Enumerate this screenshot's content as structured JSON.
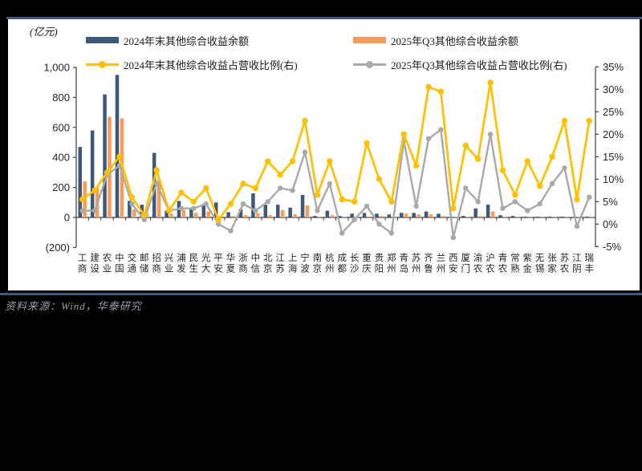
{
  "page": {
    "background": "#000000",
    "divider_color": "#3D5A7E"
  },
  "chart": {
    "unit_label": "(亿元)",
    "legend": [
      {
        "label": "2024年末其他综合收益余额",
        "type": "bar",
        "color": "#3F5878"
      },
      {
        "label": "2025年Q3其他综合收益余额",
        "type": "bar",
        "color": "#F79C5B"
      },
      {
        "label": "2024年末其他综合收益占营收比例(右)",
        "type": "line",
        "color": "#FFC000"
      },
      {
        "label": "2025年Q3其他综合收益占营收比例(右)",
        "type": "line",
        "color": "#A9A9A9"
      }
    ]
  },
  "chart_data": {
    "type": "bar+line combo",
    "title": "",
    "legend_position": "top",
    "grid": false,
    "categories": [
      "工商",
      "建设",
      "农业",
      "中国",
      "交通",
      "邮储",
      "招商",
      "兴业",
      "浦发",
      "民生",
      "光大",
      "平安",
      "华夏",
      "浙商",
      "中信",
      "北京",
      "江苏",
      "上海",
      "宁波",
      "南京",
      "杭州",
      "成都",
      "长沙",
      "重庆",
      "贵阳",
      "郑州",
      "青岛",
      "苏州",
      "齐鲁",
      "兰州",
      "西安",
      "厦门",
      "渝农",
      "沪农",
      "青农",
      "常熟",
      "紫金",
      "无锡",
      "张家",
      "苏农",
      "江阴",
      "瑞丰"
    ],
    "left_axis": {
      "label": "(亿元)",
      "min": -200,
      "max": 1000,
      "tick_values": [
        1000,
        800,
        600,
        400,
        200,
        0,
        -200
      ],
      "tick_labels": [
        "1,000",
        "800",
        "600",
        "400",
        "200",
        "0",
        "(200)"
      ]
    },
    "right_axis": {
      "min": -5,
      "max": 35,
      "tick_values": [
        35,
        30,
        25,
        20,
        15,
        10,
        5,
        0,
        -5
      ],
      "tick_labels": [
        "35%",
        "30%",
        "25%",
        "20%",
        "15%",
        "10%",
        "5%",
        "0%",
        "-5%"
      ]
    },
    "series": [
      {
        "name": "2024年末其他综合收益余额",
        "type": "bar",
        "axis": "left",
        "color": "#3F5878",
        "values": [
          470,
          580,
          820,
          950,
          110,
          85,
          430,
          45,
          110,
          60,
          90,
          100,
          35,
          55,
          160,
          85,
          85,
          65,
          150,
          10,
          45,
          10,
          25,
          30,
          25,
          20,
          30,
          30,
          40,
          25,
          5,
          10,
          60,
          85,
          15,
          10,
          5,
          5,
          5,
          5,
          5,
          5
        ]
      },
      {
        "name": "2025年Q3其他综合收益余额",
        "type": "bar",
        "axis": "left",
        "color": "#F79C5B",
        "values": [
          240,
          200,
          670,
          660,
          55,
          25,
          250,
          25,
          50,
          30,
          40,
          10,
          10,
          15,
          30,
          15,
          50,
          20,
          80,
          5,
          15,
          5,
          5,
          5,
          10,
          5,
          25,
          20,
          20,
          10,
          2,
          5,
          10,
          40,
          3,
          5,
          2,
          2,
          2,
          2,
          2,
          2
        ]
      },
      {
        "name": "2024年末其他综合收益占营收比例(右)",
        "type": "line",
        "axis": "right",
        "color": "#FFC000",
        "values": [
          5.5,
          7.5,
          11.5,
          15,
          6,
          2,
          12,
          3,
          7,
          5,
          8,
          1,
          4.5,
          9,
          8,
          14,
          11,
          14,
          23,
          6.5,
          14,
          5.5,
          5,
          18,
          10,
          5,
          20,
          13,
          30.5,
          29.5,
          3.5,
          17.5,
          14.5,
          31.5,
          12,
          6.5,
          14,
          8.5,
          15,
          23,
          5.5,
          23
        ]
      },
      {
        "name": "2025年Q3其他综合收益占营收比例(右)",
        "type": "line",
        "axis": "right",
        "color": "#A9A9A9",
        "values": [
          3,
          3,
          11,
          13,
          4.5,
          1,
          9,
          3,
          3.5,
          3.5,
          4.5,
          0,
          -1.5,
          4.5,
          3,
          5,
          8,
          7.5,
          16,
          3,
          9,
          -2,
          1,
          4,
          0,
          -2,
          18.5,
          4,
          19,
          21,
          -3,
          8,
          5,
          20,
          3.5,
          5,
          3,
          4.5,
          9,
          12.5,
          -0.5,
          6
        ]
      }
    ]
  },
  "source": {
    "text": "资料来源：Wind，华泰研究"
  }
}
